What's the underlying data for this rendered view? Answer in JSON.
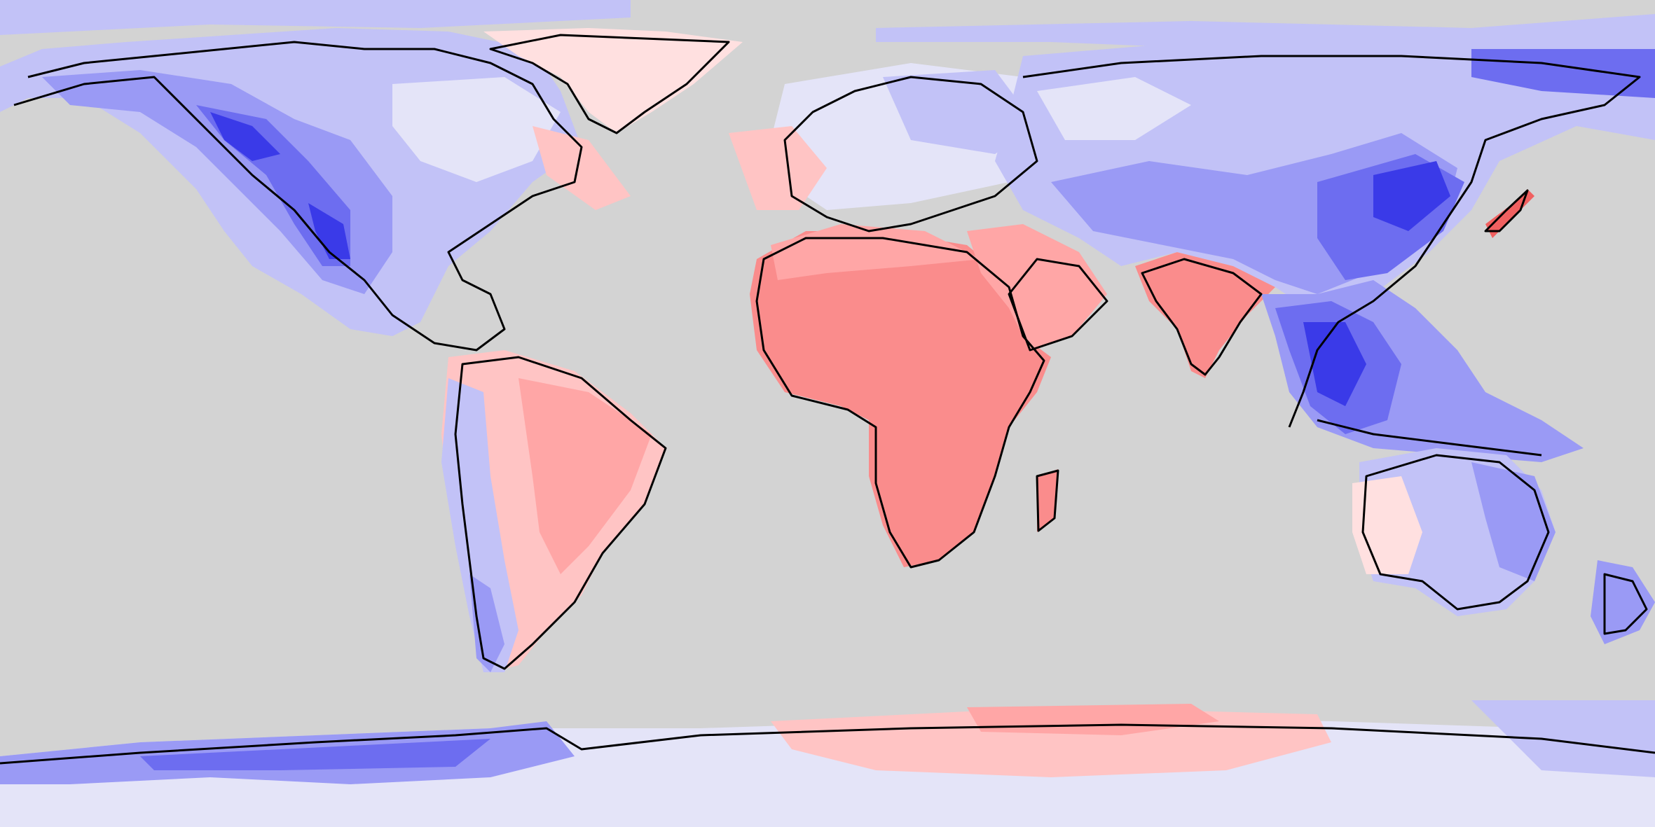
{
  "map": {
    "projection": "equirectangular",
    "background": "#d3d3d3",
    "palette": {
      "blue_strong": "#3a3ae8",
      "blue_mid": "#6d6df0",
      "blue": "#9a9af5",
      "blue_light": "#c2c2f7",
      "blue_pale": "#e4e4f8",
      "red_pale": "#ffe0e0",
      "red_light": "#ffc4c4",
      "red": "#ffa6a6",
      "red_mid": "#fa8c8c",
      "red_strong": "#f06060",
      "coastline": "#000000"
    },
    "features": [
      "north-america",
      "south-america",
      "greenland",
      "europe",
      "africa",
      "middle-east",
      "india",
      "asia",
      "southeast-asia",
      "australia",
      "antarctica"
    ]
  }
}
